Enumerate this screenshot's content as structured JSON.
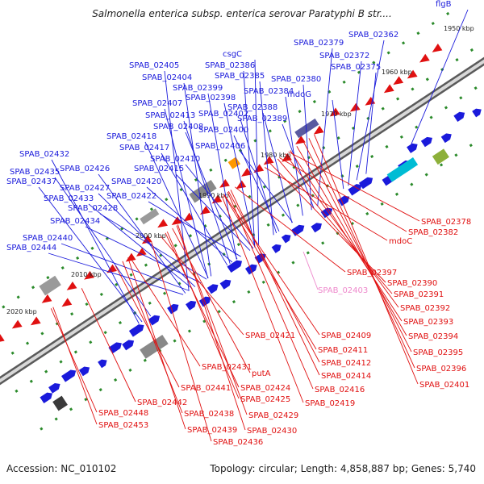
{
  "title": "Salmonella enterica subsp. enterica serovar Paratyphi B str....",
  "footer": {
    "accession": "Accession: NC_010102",
    "summary": "Topology: circular; Length: 4,858,887 bp; Genes: 5,740"
  },
  "colors": {
    "forward_strand": "#1a1adb",
    "reverse_strand": "#e01010",
    "highlight": "#ee88cc",
    "backbone": "#8a8a8a"
  },
  "kbp_marks": [
    "1950 kbp",
    "1960 kbp",
    "1970 kbp",
    "1980 kbp",
    "1990 kbp",
    "2000 kbp",
    "2010 kbp",
    "2020 kbp"
  ],
  "forward_labels": [
    "flgB",
    "SPAB_02362",
    "SPAB_02379",
    "SPAB_02372",
    "SPAB_02375",
    "csgC",
    "SPAB_02405",
    "SPAB_02386",
    "SPAB_02404",
    "SPAB_02385",
    "SPAB_02380",
    "SPAB_02399",
    "SPAB_02398",
    "SPAB_02384",
    "mdoG",
    "SPAB_02407",
    "SPAB_02388",
    "SPAB_02413",
    "SPAB_02402",
    "SPAB_02389",
    "SPAB_02408",
    "SPAB_02400",
    "SPAB_02418",
    "SPAB_02417",
    "SPAB_02406",
    "SPAB_02432",
    "SPAB_02410",
    "SPAB_02426",
    "SPAB_02415",
    "SPAB_02435",
    "SPAB_02437",
    "SPAB_02420",
    "SPAB_02427",
    "SPAB_02422",
    "SPAB_02433",
    "SPAB_02428",
    "SPAB_02434",
    "SPAB_02440",
    "SPAB_02444"
  ],
  "reverse_labels": [
    "SPAB_02378",
    "SPAB_02382",
    "mdoC",
    "SPAB_02397",
    "SPAB_02390",
    "SPAB_02391",
    "SPAB_02392",
    "SPAB_02393",
    "SPAB_02394",
    "SPAB_02395",
    "SPAB_02396",
    "SPAB_02401",
    "SPAB_02421",
    "SPAB_02409",
    "SPAB_02411",
    "SPAB_02412",
    "SPAB_02414",
    "SPAB_02416",
    "SPAB_02419",
    "SPAB_02431",
    "putA",
    "SPAB_02424",
    "SPAB_02425",
    "SPAB_02441",
    "SPAB_02442",
    "SPAB_02448",
    "SPAB_02438",
    "SPAB_02429",
    "SPAB_02453",
    "SPAB_02439",
    "SPAB_02430",
    "SPAB_02436"
  ],
  "highlight_labels": [
    "SPAB_02403"
  ]
}
